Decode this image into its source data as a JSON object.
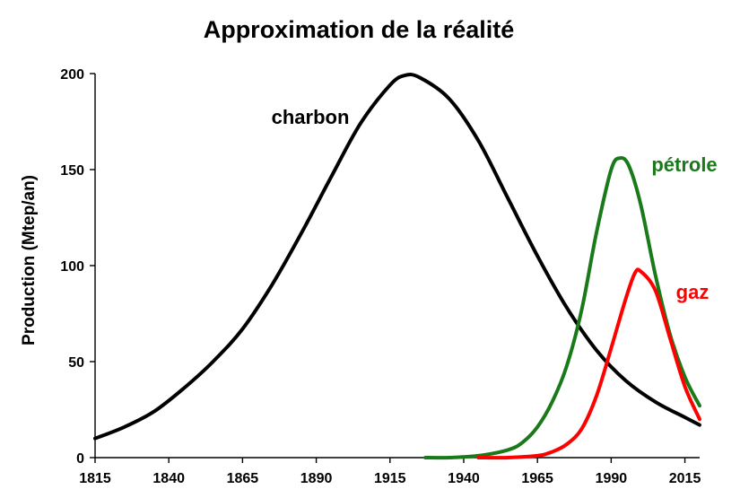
{
  "chart_data": {
    "type": "line",
    "title": "Approximation de la réalité",
    "xlabel": "",
    "ylabel": "Production (Mtep/an)",
    "xlim": [
      1815,
      2020
    ],
    "ylim": [
      0,
      200
    ],
    "xticks": [
      1815,
      1840,
      1865,
      1890,
      1915,
      1940,
      1965,
      1990,
      2015
    ],
    "yticks": [
      0,
      50,
      100,
      150,
      200
    ],
    "grid": false,
    "legend": "none",
    "series": [
      {
        "name": "charbon",
        "color": "#000000",
        "x": [
          1815,
          1825,
          1835,
          1845,
          1855,
          1865,
          1875,
          1885,
          1895,
          1905,
          1915,
          1920,
          1925,
          1935,
          1945,
          1955,
          1965,
          1975,
          1985,
          1995,
          2005,
          2015,
          2020
        ],
        "y": [
          10,
          16,
          24,
          36,
          50,
          67,
          90,
          117,
          146,
          174,
          194,
          199,
          198,
          187,
          165,
          135,
          105,
          78,
          56,
          40,
          29,
          21,
          17
        ]
      },
      {
        "name": "pétrole",
        "color": "#1a7a1a",
        "x": [
          1927,
          1935,
          1945,
          1955,
          1960,
          1965,
          1970,
          1975,
          1980,
          1985,
          1990,
          1993,
          1996,
          2000,
          2005,
          2010,
          2015,
          2020
        ],
        "y": [
          0,
          0,
          1,
          4,
          8,
          16,
          29,
          48,
          77,
          117,
          150,
          156,
          152,
          132,
          95,
          64,
          42,
          27
        ]
      },
      {
        "name": "gaz",
        "color": "#ff0000",
        "x": [
          1945,
          1955,
          1965,
          1970,
          1975,
          1980,
          1985,
          1990,
          1995,
          1998,
          2000,
          2005,
          2010,
          2015,
          2020
        ],
        "y": [
          0,
          0,
          1,
          3,
          7,
          15,
          32,
          57,
          83,
          96,
          97,
          87,
          62,
          37,
          20
        ]
      }
    ]
  }
}
